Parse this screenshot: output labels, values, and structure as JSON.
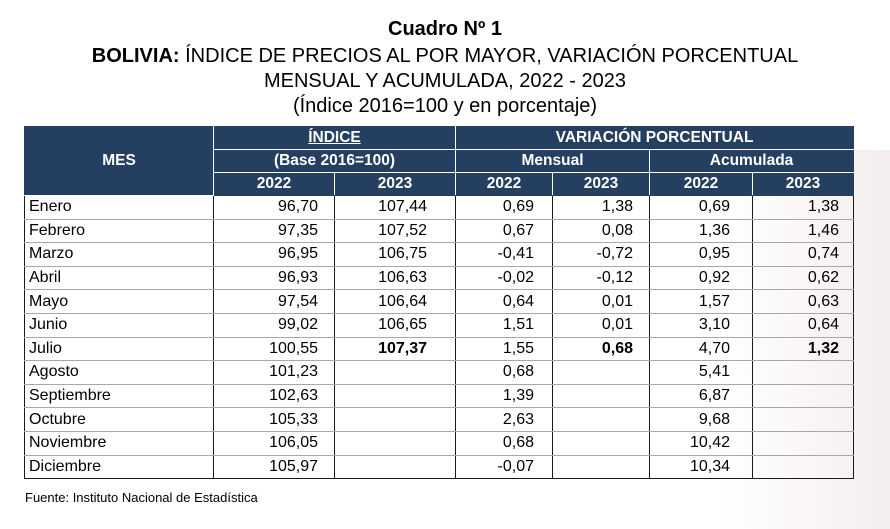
{
  "title": "Cuadro Nº 1",
  "subtitle_bold": "BOLIVIA:",
  "subtitle_rest": " ÍNDICE DE PRECIOS AL POR MAYOR, VARIACIÓN PORCENTUAL",
  "subtitle_line2": "MENSUAL Y ACUMULADA, 2022 - 2023",
  "subtitle_line3": "(Índice 2016=100 y en porcentaje)",
  "header": {
    "mes": "MES",
    "indice": "ÍNDICE",
    "base": "(Base 2016=100)",
    "variacion": "VARIACIÓN PORCENTUAL",
    "mensual": "Mensual",
    "acumulada": "Acumulada",
    "years": [
      "2022",
      "2023",
      "2022",
      "2023",
      "2022",
      "2023"
    ]
  },
  "rows": [
    {
      "mes": "Enero",
      "i22": "96,70",
      "i23": "107,44",
      "m22": "0,69",
      "m23": "1,38",
      "a22": "0,69",
      "a23": "1,38"
    },
    {
      "mes": "Febrero",
      "i22": "97,35",
      "i23": "107,52",
      "m22": "0,67",
      "m23": "0,08",
      "a22": "1,36",
      "a23": "1,46"
    },
    {
      "mes": "Marzo",
      "i22": "96,95",
      "i23": "106,75",
      "m22": "-0,41",
      "m23": "-0,72",
      "a22": "0,95",
      "a23": "0,74"
    },
    {
      "mes": "Abril",
      "i22": "96,93",
      "i23": "106,63",
      "m22": "-0,02",
      "m23": "-0,12",
      "a22": "0,92",
      "a23": "0,62"
    },
    {
      "mes": "Mayo",
      "i22": "97,54",
      "i23": "106,64",
      "m22": "0,64",
      "m23": "0,01",
      "a22": "1,57",
      "a23": "0,63"
    },
    {
      "mes": "Junio",
      "i22": "99,02",
      "i23": "106,65",
      "m22": "1,51",
      "m23": "0,01",
      "a22": "3,10",
      "a23": "0,64"
    },
    {
      "mes": "Julio",
      "i22": "100,55",
      "i23": "107,37",
      "m22": "1,55",
      "m23": "0,68",
      "a22": "4,70",
      "a23": "1,32"
    },
    {
      "mes": "Agosto",
      "i22": "101,23",
      "i23": "",
      "m22": "0,68",
      "m23": "",
      "a22": "5,41",
      "a23": ""
    },
    {
      "mes": "Septiembre",
      "i22": "102,63",
      "i23": "",
      "m22": "1,39",
      "m23": "",
      "a22": "6,87",
      "a23": ""
    },
    {
      "mes": "Octubre",
      "i22": "105,33",
      "i23": "",
      "m22": "2,63",
      "m23": "",
      "a22": "9,68",
      "a23": ""
    },
    {
      "mes": "Noviembre",
      "i22": "106,05",
      "i23": "",
      "m22": "0,68",
      "m23": "",
      "a22": "10,42",
      "a23": ""
    },
    {
      "mes": "Diciembre",
      "i22": "105,97",
      "i23": "",
      "m22": "-0,07",
      "m23": "",
      "a22": "10,34",
      "a23": ""
    }
  ],
  "bold_row_index": 6,
  "source": "Fuente: Instituto Nacional de Estadística",
  "colors": {
    "header_bg": "#243f60",
    "header_text": "#ffffff"
  }
}
